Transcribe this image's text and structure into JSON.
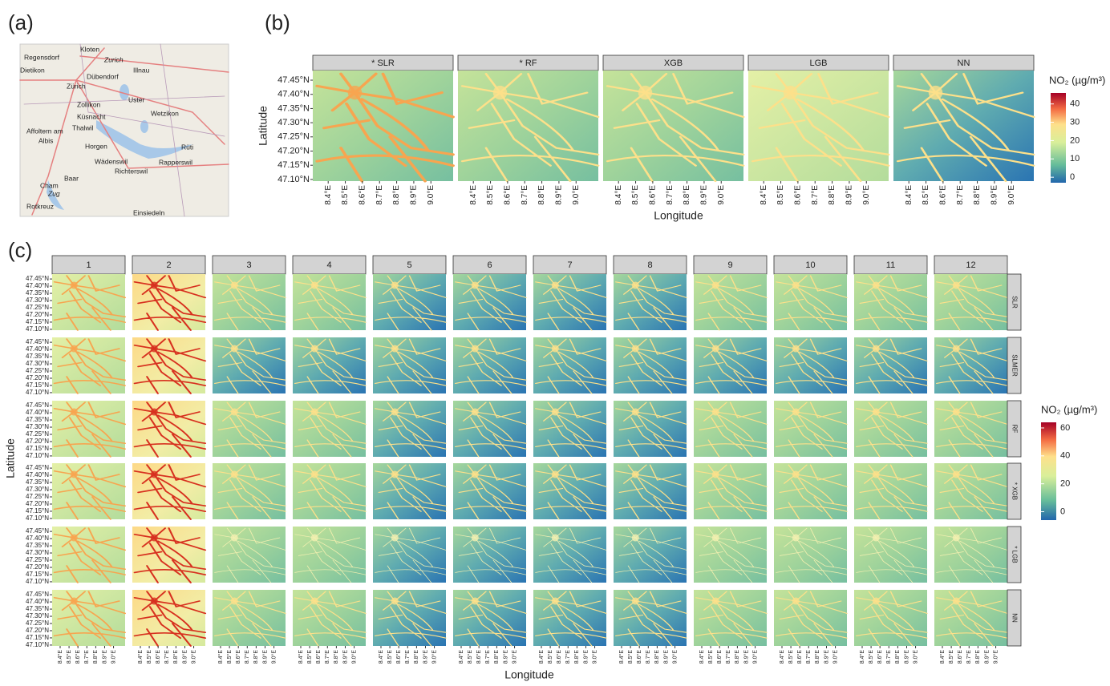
{
  "panel_a": {
    "label": "(a)",
    "places": [
      "Kloten",
      "Regensdorf",
      "Zurich",
      "Dietikon",
      "Dübendorf",
      "Illnau",
      "Zürich",
      "Uster",
      "Zollikon",
      "Küsnacht",
      "Wetzikon",
      "Affoltern am",
      "Thalwil",
      "Albis",
      "Horgen",
      "Rüti",
      "Wädenswil",
      "Rapperswil",
      "Richterswil",
      "Baar",
      "Cham",
      "Zug",
      "Rotkreuz",
      "Einsiedeln"
    ]
  },
  "panel_b": {
    "label": "(b)",
    "facets": [
      "*  SLR",
      "*  RF",
      "XGB",
      "LGB",
      "NN"
    ],
    "x_label": "Longitude",
    "y_label": "Latitude",
    "xlim": [
      8.31,
      9.13
    ],
    "ylim": [
      47.094,
      47.484
    ],
    "xticks": [
      {
        "value": 8.4,
        "label": "8.4°E"
      },
      {
        "value": 8.5,
        "label": "8.5°E"
      },
      {
        "value": 8.6,
        "label": "8.6°E"
      },
      {
        "value": 8.7,
        "label": "8.7°E"
      },
      {
        "value": 8.8,
        "label": "8.8°E"
      },
      {
        "value": 8.9,
        "label": "8.9°E"
      },
      {
        "value": 9.0,
        "label": "9.0°E"
      }
    ],
    "yticks": [
      {
        "value": 47.45,
        "label": "47.45°N"
      },
      {
        "value": 47.4,
        "label": "47.40°N"
      },
      {
        "value": 47.35,
        "label": "47.35°N"
      },
      {
        "value": 47.3,
        "label": "47.30°N"
      },
      {
        "value": 47.25,
        "label": "47.25°N"
      },
      {
        "value": 47.2,
        "label": "47.20°N"
      },
      {
        "value": 47.15,
        "label": "47.15°N"
      },
      {
        "value": 47.1,
        "label": "47.10°N"
      }
    ],
    "colorbar": {
      "title": "NO₂ (µg/m³)",
      "lim": [
        -3,
        46
      ],
      "ticks": [
        0,
        10,
        20,
        30,
        40
      ]
    }
  },
  "panel_c": {
    "label": "(c)",
    "columns": [
      "1",
      "2",
      "3",
      "4",
      "5",
      "6",
      "7",
      "8",
      "9",
      "10",
      "11",
      "12"
    ],
    "rows": [
      "SLR",
      "SLMER",
      "RF",
      "* XGB",
      "* LGB",
      "NN"
    ],
    "x_label": "Longitude",
    "y_label": "Latitude",
    "xlim": [
      8.31,
      9.13
    ],
    "ylim": [
      47.094,
      47.484
    ],
    "xticks": [
      {
        "value": 8.4,
        "label": "8.4°E"
      },
      {
        "value": 8.5,
        "label": "8.5°E"
      },
      {
        "value": 8.6,
        "label": "8.6°E"
      },
      {
        "value": 8.7,
        "label": "8.7°E"
      },
      {
        "value": 8.8,
        "label": "8.8°E"
      },
      {
        "value": 8.9,
        "label": "8.9°E"
      },
      {
        "value": 9.0,
        "label": "9.0°E"
      }
    ],
    "yticks": [
      {
        "value": 47.45,
        "label": "47.45°N"
      },
      {
        "value": 47.4,
        "label": "47.40°N"
      },
      {
        "value": 47.35,
        "label": "47.35°N"
      },
      {
        "value": 47.3,
        "label": "47.30°N"
      },
      {
        "value": 47.25,
        "label": "47.25°N"
      },
      {
        "value": 47.2,
        "label": "47.20°N"
      },
      {
        "value": 47.15,
        "label": "47.15°N"
      },
      {
        "value": 47.1,
        "label": "47.10°N"
      }
    ],
    "colorbar": {
      "title": "NO₂ (µg/m³)",
      "lim": [
        -6,
        64
      ],
      "ticks": [
        0,
        20,
        40,
        60
      ]
    }
  }
}
